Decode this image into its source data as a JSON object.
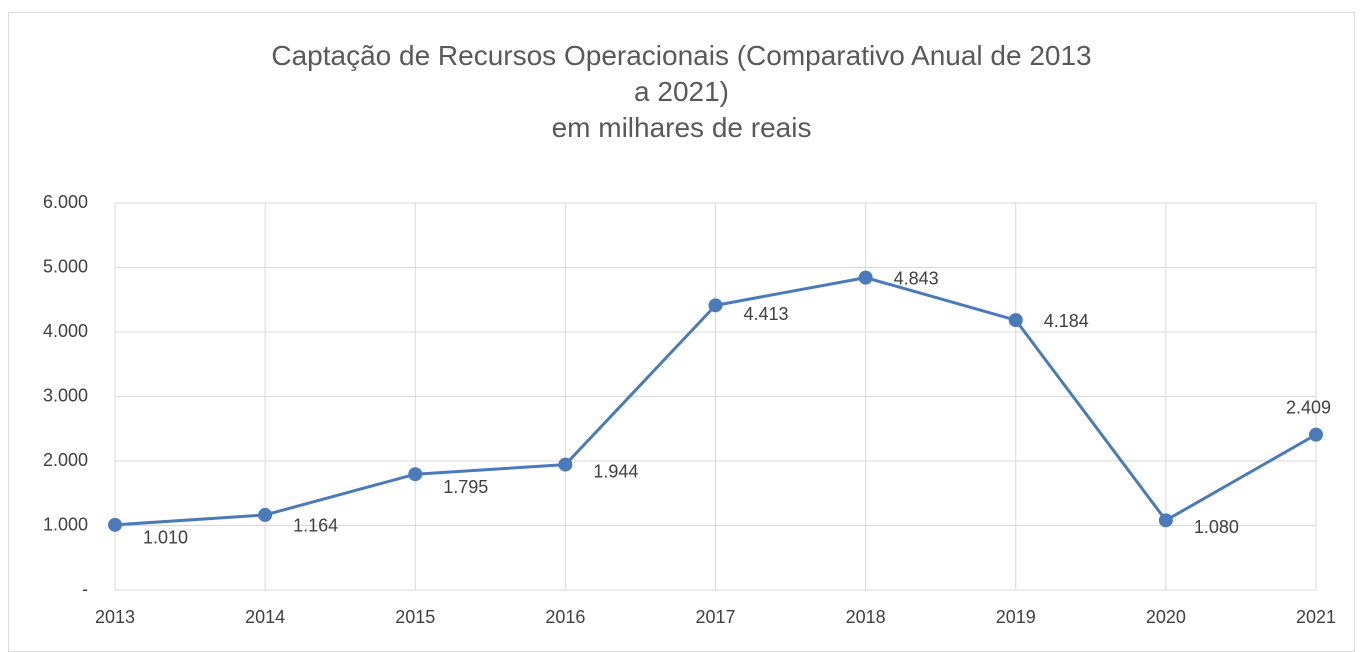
{
  "chart_data": {
    "type": "line",
    "title": "Captação de Recursos Operacionais (Comparativo Anual de 2013 a 2021)",
    "subtitle": "em milhares de reais",
    "categories": [
      "2013",
      "2014",
      "2015",
      "2016",
      "2017",
      "2018",
      "2019",
      "2020",
      "2021"
    ],
    "values": [
      1010,
      1164,
      1795,
      1944,
      4413,
      4843,
      4184,
      1080,
      2409
    ],
    "value_labels": [
      "1.010",
      "1.164",
      "1.795",
      "1.944",
      "4.413",
      "4.843",
      "4.184",
      "1.080",
      "2.409"
    ],
    "color": "#4a7ab9",
    "ylim": [
      0,
      6000
    ],
    "yticks": [
      {
        "value": 0,
        "label": "-"
      },
      {
        "value": 1000,
        "label": "1.000"
      },
      {
        "value": 2000,
        "label": "2.000"
      },
      {
        "value": 3000,
        "label": "3.000"
      },
      {
        "value": 4000,
        "label": "4.000"
      },
      {
        "value": 5000,
        "label": "5.000"
      },
      {
        "value": 6000,
        "label": "6.000"
      }
    ],
    "grid": true
  }
}
